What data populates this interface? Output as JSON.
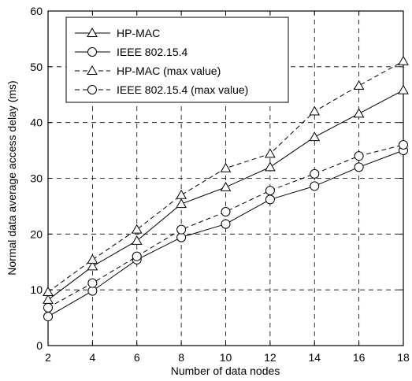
{
  "chart_data": {
    "type": "line",
    "title": "",
    "xlabel": "Number of data nodes",
    "ylabel": "Normal data average access delay (ms)",
    "xlim": [
      2,
      18
    ],
    "ylim": [
      0,
      60
    ],
    "xticks": [
      2,
      4,
      6,
      8,
      10,
      12,
      14,
      16,
      18
    ],
    "yticks": [
      0,
      10,
      20,
      30,
      40,
      50,
      60
    ],
    "grid": true,
    "legend_position": "top-left",
    "x": [
      2,
      4,
      6,
      8,
      10,
      12,
      14,
      16,
      18
    ],
    "series": [
      {
        "name": "HP-MAC",
        "marker": "triangle",
        "line": "solid",
        "values": [
          8.2,
          14.2,
          18.8,
          25.4,
          28.4,
          32.0,
          37.4,
          41.6,
          45.8
        ]
      },
      {
        "name": "IEEE 802.15.4",
        "marker": "circle",
        "line": "solid",
        "values": [
          5.2,
          9.8,
          15.4,
          19.4,
          21.8,
          26.2,
          28.6,
          32.0,
          35.0
        ]
      },
      {
        "name": "HP-MAC (max value)",
        "marker": "triangle",
        "line": "dashed",
        "values": [
          9.6,
          15.4,
          20.8,
          27.0,
          31.8,
          34.4,
          42.0,
          46.6,
          51.0
        ]
      },
      {
        "name": "IEEE 802.15.4 (max value)",
        "marker": "circle",
        "line": "dashed",
        "values": [
          6.8,
          11.2,
          16.0,
          20.8,
          24.0,
          27.8,
          30.8,
          34.0,
          36.0
        ]
      }
    ]
  }
}
